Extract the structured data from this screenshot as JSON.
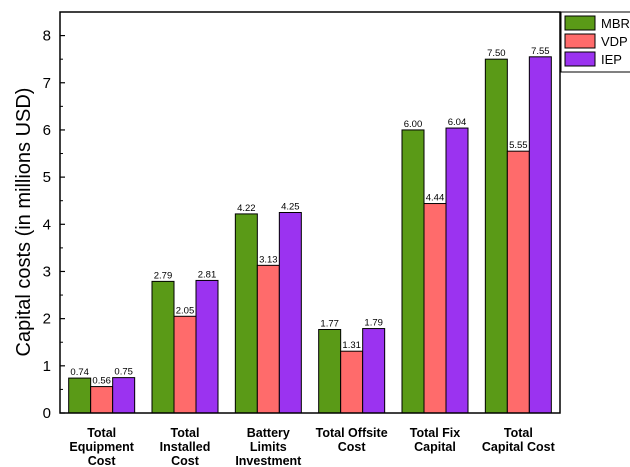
{
  "chart_data": {
    "type": "bar",
    "title": "",
    "xlabel": "",
    "ylabel": "Capital costs (in millions USD)",
    "ylim": [
      0,
      8.5
    ],
    "yticks": [
      0,
      1,
      2,
      3,
      4,
      5,
      6,
      7,
      8
    ],
    "grid": false,
    "legend_position": "top-right",
    "categories": [
      [
        "Total",
        "Equipment",
        "Cost"
      ],
      [
        "Total",
        "Installed",
        "Cost"
      ],
      [
        "Battery",
        "Limits",
        "Investment"
      ],
      [
        "Total Offsite",
        "Cost"
      ],
      [
        "Total Fix",
        "Capital"
      ],
      [
        "Total",
        "Capital Cost"
      ]
    ],
    "series": [
      {
        "name": "MBR",
        "color": "#5a9a17",
        "values": [
          0.74,
          2.79,
          4.22,
          1.77,
          6.0,
          7.5
        ],
        "labels": [
          "0.74",
          "2.79",
          "4.22",
          "1.77",
          "6.00",
          "7.50"
        ]
      },
      {
        "name": "VDP",
        "color": "#ff6b6b",
        "values": [
          0.56,
          2.05,
          3.13,
          1.31,
          4.44,
          5.55
        ],
        "labels": [
          "0.56",
          "2.05",
          "3.13",
          "1.31",
          "4.44",
          "5.55"
        ]
      },
      {
        "name": "IEP",
        "color": "#9b33f0",
        "values": [
          0.75,
          2.81,
          4.25,
          1.79,
          6.04,
          7.55
        ],
        "labels": [
          "0.75",
          "2.81",
          "4.25",
          "1.79",
          "6.04",
          "7.55"
        ]
      }
    ]
  }
}
